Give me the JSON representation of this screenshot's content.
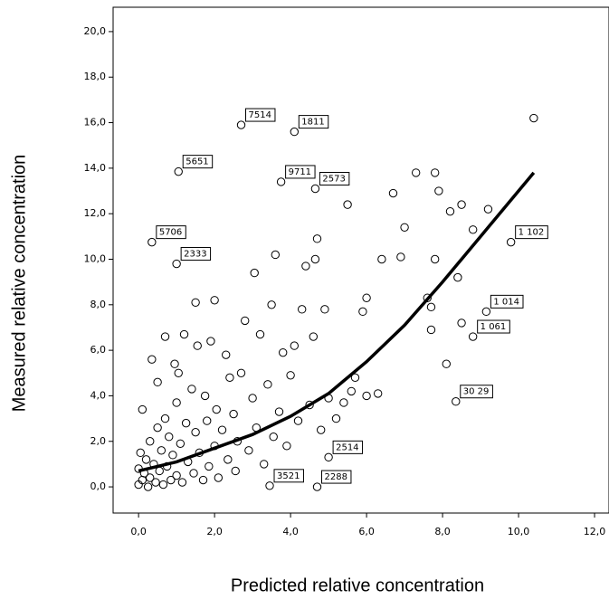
{
  "chart_data": {
    "type": "scatter",
    "x_label": "Predicted relative concentration",
    "y_label": "Measured relative concentration",
    "xlim": [
      -0.67,
      12.38
    ],
    "ylim": [
      -1.15,
      21.07
    ],
    "xticks": [
      {
        "value": 0,
        "label": "0,0"
      },
      {
        "value": 2,
        "label": "2,0"
      },
      {
        "value": 4,
        "label": "4,0"
      },
      {
        "value": 6,
        "label": "6,0"
      },
      {
        "value": 8,
        "label": "8,0"
      },
      {
        "value": 10,
        "label": "10,0"
      },
      {
        "value": 12,
        "label": "12,0"
      }
    ],
    "yticks": [
      {
        "value": 0,
        "label": "0,0"
      },
      {
        "value": 2,
        "label": "2,0"
      },
      {
        "value": 4,
        "label": "4,0"
      },
      {
        "value": 6,
        "label": "6,0"
      },
      {
        "value": 8,
        "label": "8,0"
      },
      {
        "value": 10,
        "label": "10,0"
      },
      {
        "value": 12,
        "label": "12,0"
      },
      {
        "value": 14,
        "label": "14,0"
      },
      {
        "value": 16,
        "label": "16,0"
      },
      {
        "value": 18,
        "label": "18,0"
      },
      {
        "value": 20,
        "label": "20,0"
      }
    ],
    "color": "#000000",
    "x": [
      0.0,
      0.0,
      0.05,
      0.1,
      0.1,
      0.15,
      0.2,
      0.25,
      0.3,
      0.3,
      0.35,
      0.4,
      0.45,
      0.5,
      0.5,
      0.55,
      0.6,
      0.65,
      0.7,
      0.7,
      0.75,
      0.8,
      0.85,
      0.9,
      0.95,
      1.0,
      1.0,
      1.05,
      1.1,
      1.15,
      1.2,
      1.25,
      1.3,
      1.4,
      1.45,
      1.5,
      1.5,
      1.55,
      1.6,
      1.7,
      1.75,
      1.8,
      1.85,
      1.9,
      2.0,
      2.0,
      2.05,
      2.1,
      2.2,
      2.3,
      2.35,
      2.4,
      2.5,
      2.55,
      2.6,
      2.7,
      2.8,
      2.9,
      3.0,
      3.05,
      3.1,
      3.2,
      3.3,
      3.4,
      3.5,
      3.55,
      3.6,
      3.7,
      3.8,
      3.9,
      4.0,
      4.1,
      4.2,
      4.3,
      4.4,
      4.5,
      4.6,
      4.65,
      4.7,
      4.8,
      4.9,
      5.0,
      5.2,
      5.4,
      5.5,
      5.6,
      5.7,
      5.9,
      6.0,
      6.0,
      6.3,
      6.4,
      6.7,
      6.9,
      7.0,
      7.3,
      7.6,
      7.7,
      7.8,
      7.8,
      7.9,
      8.1,
      8.2,
      8.5,
      8.4,
      8.5,
      8.8,
      9.2,
      10.4,
      7.7
    ],
    "values": [
      0.1,
      0.8,
      1.5,
      0.3,
      3.4,
      0.6,
      1.2,
      0.0,
      2.0,
      0.4,
      5.6,
      1.0,
      0.2,
      2.6,
      4.6,
      0.7,
      1.6,
      0.1,
      6.6,
      3.0,
      0.9,
      2.2,
      0.3,
      1.4,
      5.4,
      0.5,
      3.7,
      5.0,
      1.9,
      0.2,
      6.7,
      2.8,
      1.1,
      4.3,
      0.6,
      8.1,
      2.4,
      6.2,
      1.5,
      0.3,
      4.0,
      2.9,
      0.9,
      6.4,
      8.2,
      1.8,
      3.4,
      0.4,
      2.5,
      5.8,
      1.2,
      4.8,
      3.2,
      0.7,
      2.0,
      5.0,
      7.3,
      1.6,
      3.9,
      9.4,
      2.6,
      6.7,
      1.0,
      4.5,
      8.0,
      2.2,
      10.2,
      3.3,
      5.9,
      1.8,
      4.9,
      6.2,
      2.9,
      7.8,
      9.7,
      3.6,
      6.6,
      10.0,
      10.9,
      2.5,
      7.8,
      3.9,
      3.0,
      3.7,
      12.4,
      4.2,
      4.8,
      7.7,
      8.3,
      4.0,
      4.1,
      10.0,
      12.9,
      10.1,
      11.4,
      13.8,
      8.3,
      6.9,
      10.0,
      13.8,
      13.0,
      5.4,
      12.1,
      12.4,
      9.2,
      7.2,
      11.3,
      12.2,
      16.2,
      7.9
    ],
    "labeled_points": {
      "x": [
        2.7,
        4.1,
        1.05,
        3.75,
        4.65,
        0.35,
        1.0,
        9.8,
        9.15,
        8.8,
        8.35,
        5.0,
        3.45,
        4.7
      ],
      "values": [
        15.9,
        15.6,
        13.85,
        13.4,
        13.1,
        10.75,
        9.8,
        10.75,
        7.7,
        6.6,
        3.75,
        1.3,
        0.05,
        0.0
      ],
      "labels": [
        "7514",
        "1811",
        "5651",
        "9711",
        "2573",
        "5706",
        "2333",
        "1 102",
        "1 014",
        "1 061",
        "30 29",
        "2514",
        "3521",
        "2288"
      ]
    },
    "fit": {
      "x": [
        0,
        1,
        2,
        3,
        4,
        5,
        6,
        7,
        8,
        9,
        10,
        10.4
      ],
      "values": [
        0.7,
        1.1,
        1.7,
        2.3,
        3.1,
        4.1,
        5.5,
        7.1,
        9.0,
        11.0,
        13.0,
        13.8
      ]
    }
  }
}
